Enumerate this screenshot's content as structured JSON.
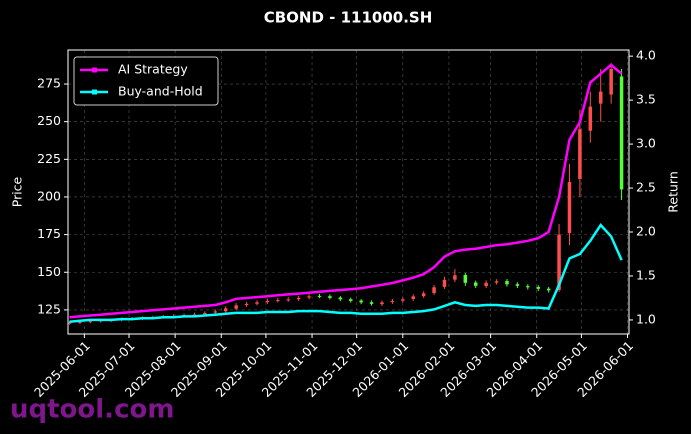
{
  "chart_data": {
    "type": "candlestick",
    "title": "CBOND - 111000.SH",
    "ylabel": "Price",
    "y2label": "Return",
    "watermark": "uqtool.com",
    "x": [
      "2025-05-22",
      "2025-05-29",
      "2025-06-05",
      "2025-06-12",
      "2025-06-19",
      "2025-06-26",
      "2025-07-03",
      "2025-07-10",
      "2025-07-17",
      "2025-07-24",
      "2025-07-31",
      "2025-08-07",
      "2025-08-14",
      "2025-08-21",
      "2025-08-28",
      "2025-09-04",
      "2025-09-11",
      "2025-09-18",
      "2025-09-25",
      "2025-10-02",
      "2025-10-09",
      "2025-10-16",
      "2025-10-23",
      "2025-10-30",
      "2025-11-06",
      "2025-11-13",
      "2025-11-20",
      "2025-11-27",
      "2025-12-04",
      "2025-12-11",
      "2025-12-18",
      "2025-12-25",
      "2026-01-01",
      "2026-01-08",
      "2026-01-15",
      "2026-01-22",
      "2026-01-29",
      "2026-02-05",
      "2026-02-12",
      "2026-02-19",
      "2026-02-26",
      "2026-03-05",
      "2026-03-12",
      "2026-03-19",
      "2026-03-26",
      "2026-04-02",
      "2026-04-09",
      "2026-04-16",
      "2026-04-23",
      "2026-04-30",
      "2026-05-07",
      "2026-05-14",
      "2026-05-21",
      "2026-05-28"
    ],
    "open": [
      116,
      116.6,
      117.1,
      117.4,
      118.1,
      118.3,
      118.9,
      119.1,
      119.4,
      120.1,
      120.6,
      121.1,
      121.4,
      122.1,
      123.2,
      124.1,
      125.8,
      128.2,
      129.1,
      130.2,
      131.2,
      131.4,
      132.1,
      133.2,
      134.3,
      134.1,
      133.2,
      132.1,
      131.2,
      130.1,
      128.8,
      130.2,
      131.1,
      132.2,
      134.1,
      136.2,
      140.3,
      145.1,
      148.2,
      143.2,
      140.8,
      143.1,
      144.2,
      142.1,
      140.8,
      140.2,
      139.1,
      138.2,
      176,
      212,
      244,
      262,
      268,
      280
    ],
    "high": [
      117.5,
      118,
      118.5,
      119,
      119.3,
      120,
      120.2,
      120.6,
      121.1,
      121.6,
      122.1,
      122.6,
      123.2,
      124.1,
      125.3,
      127.4,
      129.5,
      130.4,
      131.3,
      132.5,
      133,
      133.4,
      134.3,
      135.4,
      135.6,
      135.3,
      134.2,
      133.1,
      132.2,
      131.3,
      131.2,
      132.3,
      133.3,
      135.4,
      137.4,
      141.5,
      147,
      152,
      149.5,
      144.5,
      144.6,
      145.4,
      145.5,
      143.4,
      142.1,
      141.4,
      140.3,
      182,
      222,
      258,
      270,
      285,
      289,
      285
    ],
    "low": [
      115.2,
      115.7,
      116.2,
      116.6,
      117,
      117.4,
      117.9,
      118.2,
      118.6,
      119.2,
      119.7,
      120.2,
      120.6,
      121,
      122,
      123,
      124.7,
      127,
      128,
      129,
      130,
      130.4,
      131,
      132,
      132.8,
      131.9,
      130.8,
      129.8,
      128.8,
      127.8,
      127.6,
      129,
      130,
      131,
      133,
      135,
      139,
      143.5,
      141,
      139.5,
      139.5,
      141.8,
      140.5,
      139.5,
      138.5,
      137.5,
      136.5,
      137,
      168,
      200,
      236,
      250,
      262,
      198
    ],
    "close": [
      116.5,
      117,
      117.5,
      118,
      118.2,
      118.8,
      119,
      119.5,
      120,
      120.5,
      121,
      121.5,
      122,
      123,
      124,
      126,
      128,
      129,
      130,
      131,
      131.5,
      132,
      133,
      134,
      134,
      133,
      132,
      131,
      130,
      129,
      130,
      131,
      132,
      134,
      136,
      140,
      145,
      148,
      143,
      141,
      143,
      144,
      142,
      141,
      140,
      139,
      138,
      175,
      210,
      245,
      260,
      270,
      285,
      205
    ],
    "up_color": "#ff4d4d",
    "down_color": "#55ff33",
    "series": [
      {
        "name": "AI Strategy",
        "color": "#ff00ff",
        "axis": "y2",
        "values": [
          1.03,
          1.04,
          1.05,
          1.06,
          1.07,
          1.08,
          1.09,
          1.1,
          1.11,
          1.12,
          1.13,
          1.14,
          1.15,
          1.16,
          1.17,
          1.2,
          1.24,
          1.25,
          1.26,
          1.27,
          1.28,
          1.29,
          1.3,
          1.31,
          1.32,
          1.33,
          1.34,
          1.35,
          1.36,
          1.38,
          1.4,
          1.42,
          1.45,
          1.48,
          1.52,
          1.6,
          1.72,
          1.78,
          1.8,
          1.81,
          1.83,
          1.85,
          1.86,
          1.88,
          1.9,
          1.93,
          2.0,
          2.4,
          3.05,
          3.25,
          3.7,
          3.8,
          3.9,
          3.8
        ]
      },
      {
        "name": "Buy-and-Hold",
        "color": "#00ffff",
        "axis": "y2",
        "values": [
          0.98,
          0.99,
          1.0,
          1.0,
          1.0,
          1.01,
          1.01,
          1.02,
          1.02,
          1.03,
          1.03,
          1.04,
          1.04,
          1.05,
          1.06,
          1.07,
          1.08,
          1.08,
          1.08,
          1.09,
          1.09,
          1.09,
          1.1,
          1.1,
          1.1,
          1.09,
          1.08,
          1.08,
          1.07,
          1.07,
          1.07,
          1.08,
          1.08,
          1.09,
          1.1,
          1.12,
          1.16,
          1.2,
          1.17,
          1.16,
          1.17,
          1.17,
          1.16,
          1.15,
          1.14,
          1.14,
          1.13,
          1.4,
          1.7,
          1.75,
          1.9,
          2.08,
          1.95,
          1.68
        ]
      }
    ],
    "xlim": [
      "2025-05-21",
      "2026-06-02"
    ],
    "xticks": [
      "2025-06-01",
      "2025-07-01",
      "2025-08-01",
      "2025-09-01",
      "2025-10-01",
      "2025-11-01",
      "2025-12-01",
      "2026-01-01",
      "2026-02-01",
      "2026-03-01",
      "2026-04-01",
      "2026-05-01",
      "2026-06-01"
    ],
    "ylim": [
      109,
      297.6
    ],
    "yticks": [
      125,
      150,
      175,
      200,
      225,
      250,
      275
    ],
    "y2lim": [
      0.84,
      4.07
    ],
    "y2ticks": [
      {
        "value": 1,
        "label": "1.0"
      },
      {
        "value": 1.5,
        "label": "1.5"
      },
      {
        "value": 2,
        "label": "2.0"
      },
      {
        "value": 2.5,
        "label": "2.5"
      },
      {
        "value": 3,
        "label": "3.0"
      },
      {
        "value": 3.5,
        "label": "3.5"
      },
      {
        "value": 4,
        "label": "4.0"
      }
    ],
    "grid": true,
    "legend": "upper left"
  }
}
